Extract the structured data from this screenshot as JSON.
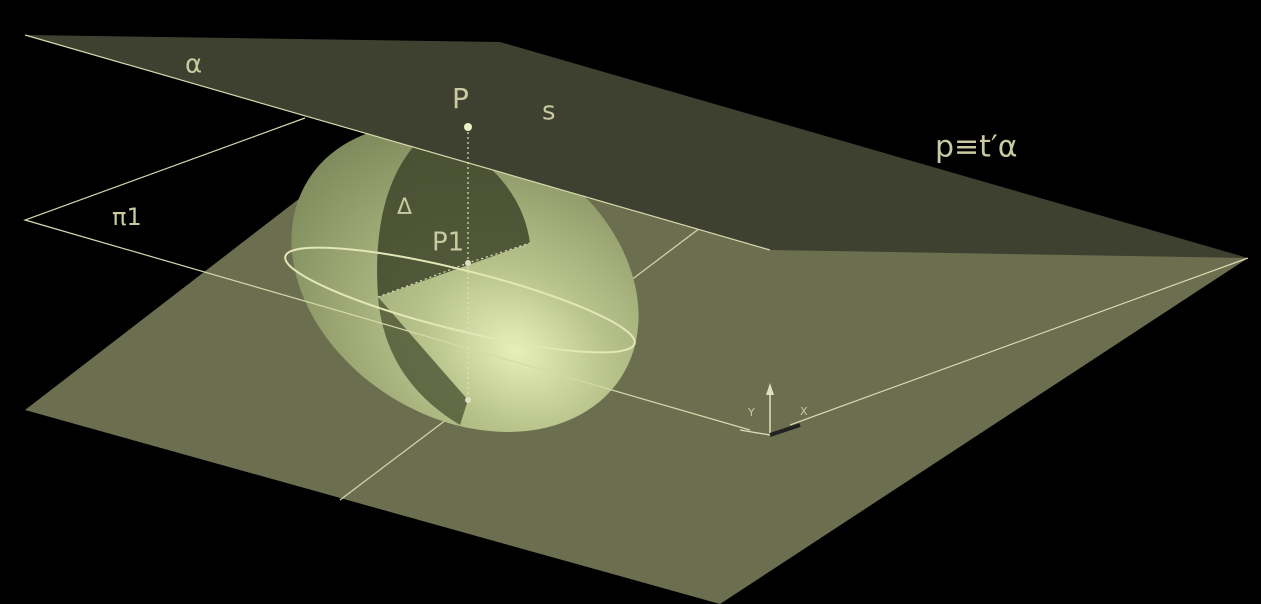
{
  "labels": {
    "alpha": "α",
    "P": "P",
    "s": "s",
    "tangent": "p≡t′α",
    "pi1": "π1",
    "delta": "Δ",
    "P1": "P1",
    "axis_y": "Y",
    "axis_x": "X"
  }
}
